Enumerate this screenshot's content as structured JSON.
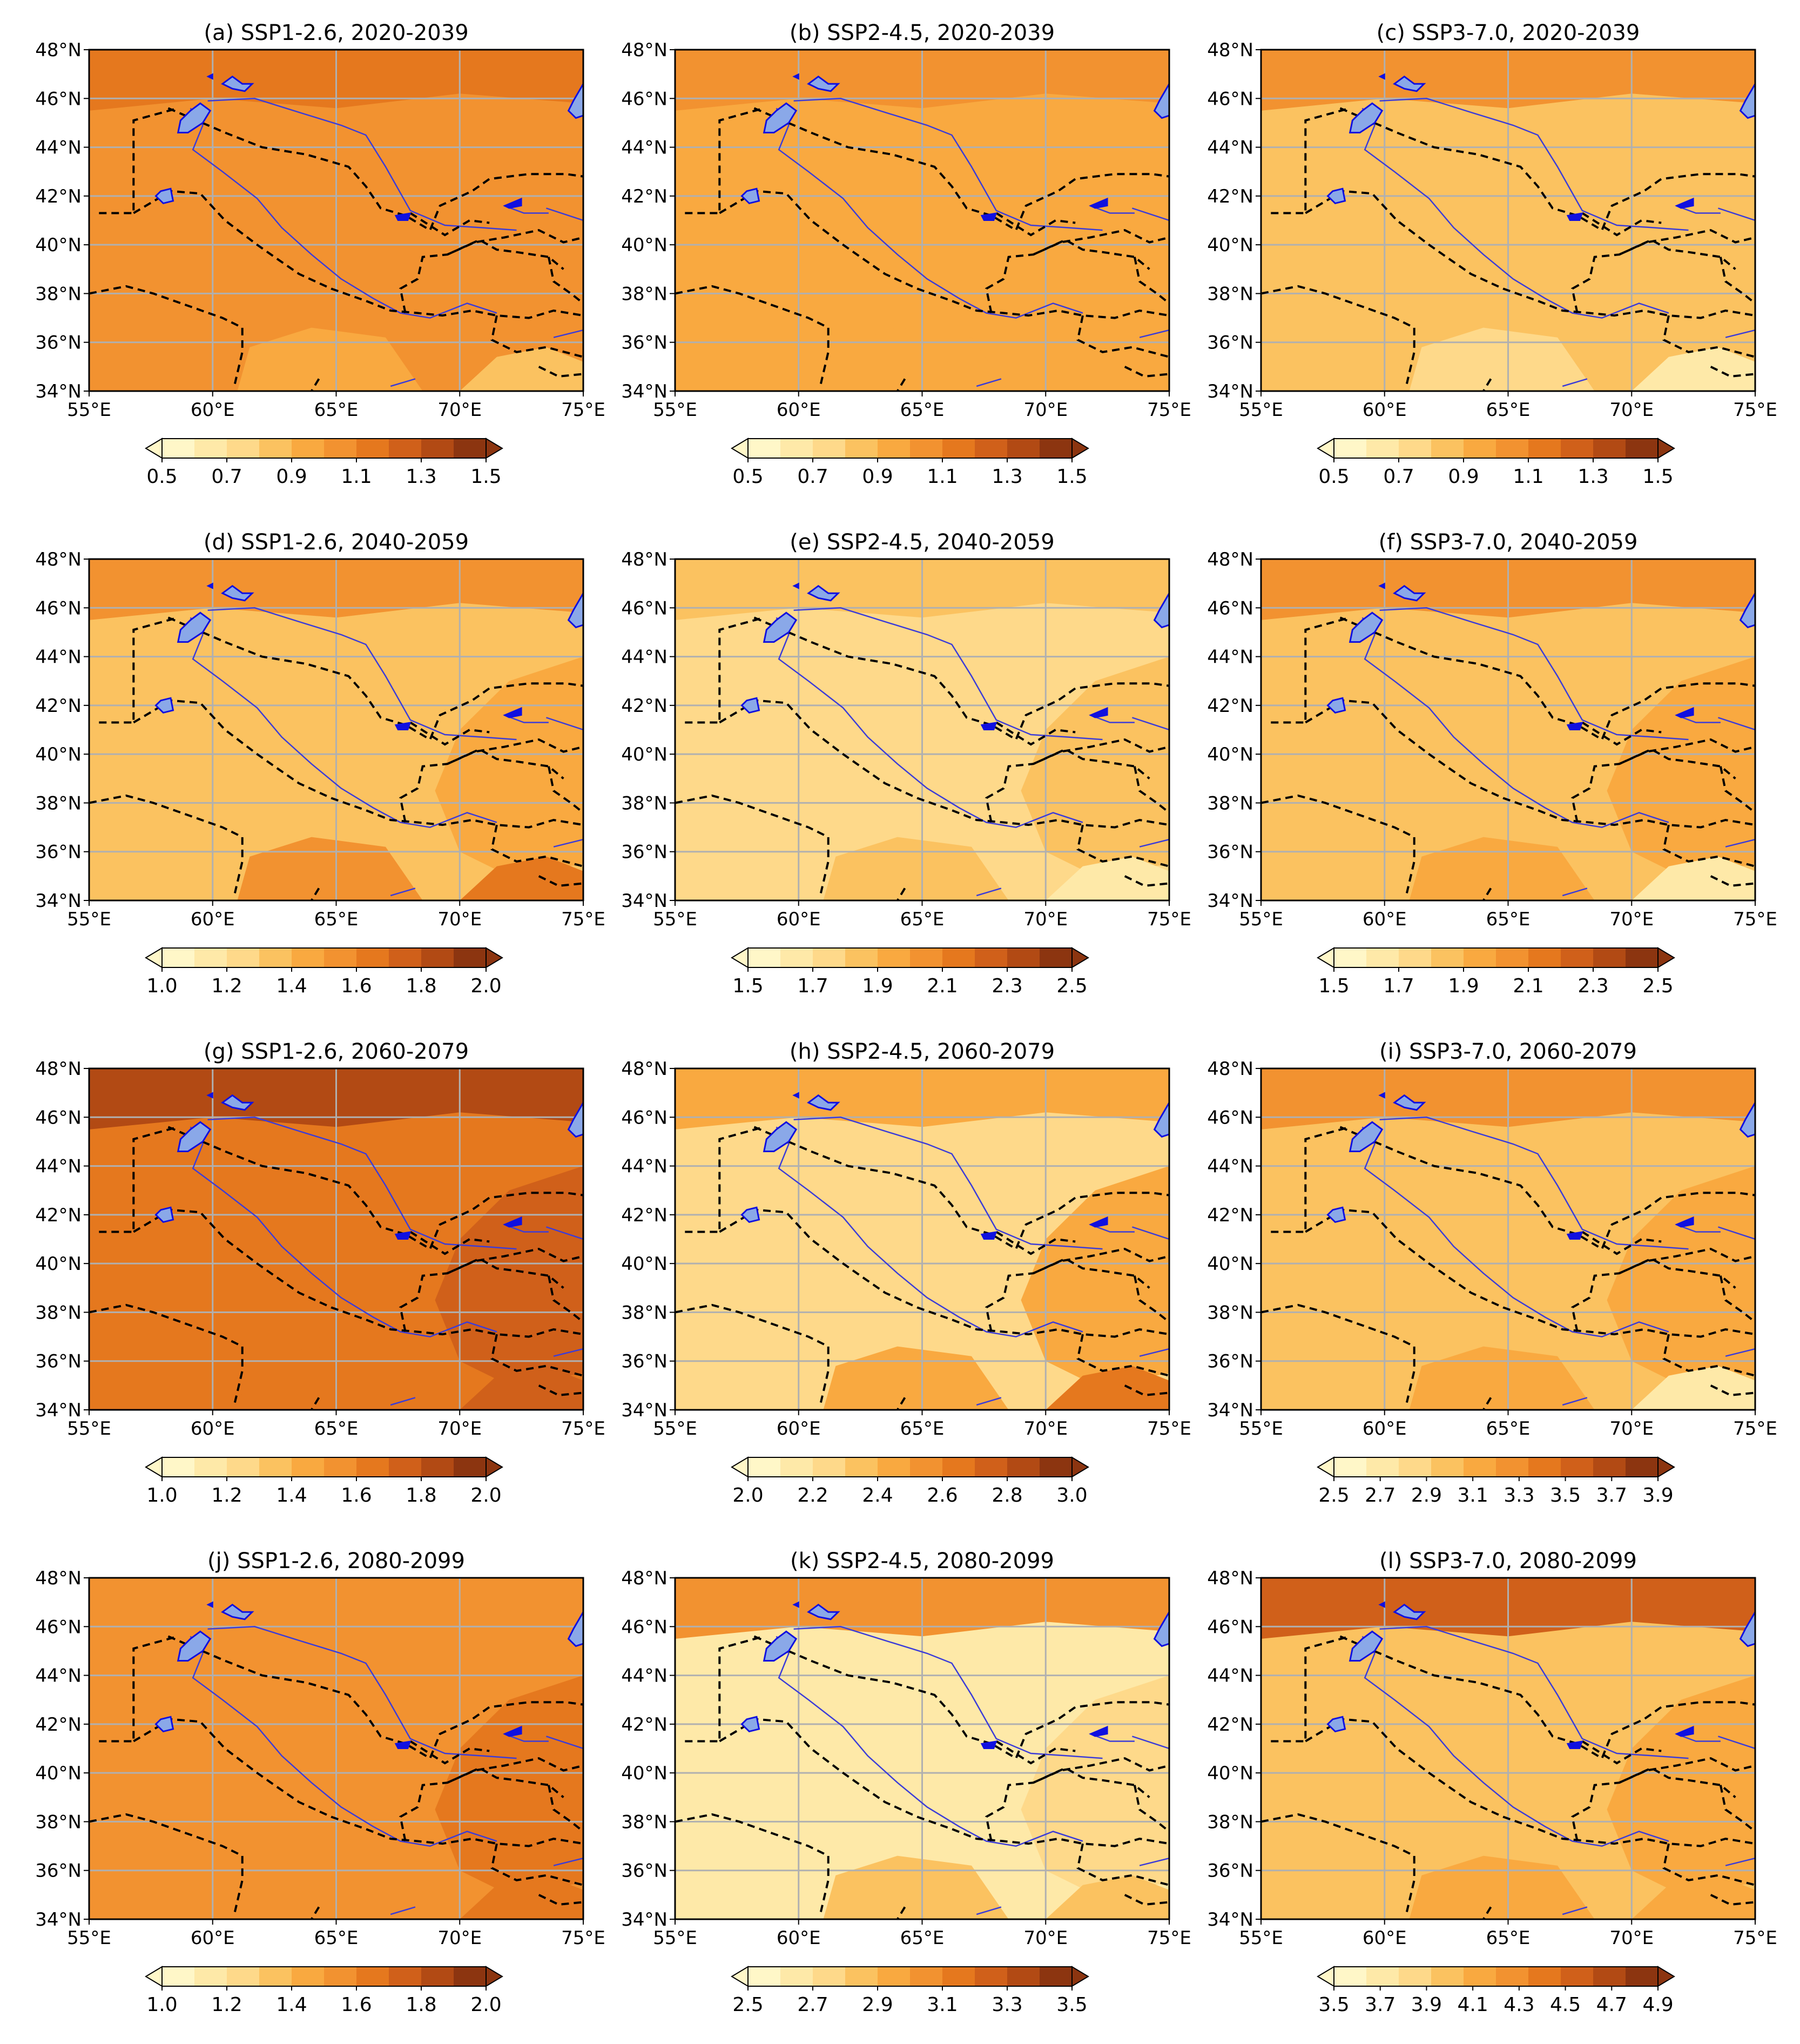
{
  "figure": {
    "colors": [
      "#fff7c8",
      "#fee9a8",
      "#fed98a",
      "#fbc260",
      "#f9a940",
      "#f29230",
      "#e5781e",
      "#d0601a",
      "#b24a14",
      "#8c3510"
    ],
    "lon_ticks": [
      "55°E",
      "60°E",
      "65°E",
      "70°E",
      "75°E"
    ],
    "lat_ticks": [
      "48°N",
      "46°N",
      "44°N",
      "42°N",
      "40°N",
      "38°N",
      "36°N",
      "34°N"
    ],
    "map_extent": {
      "lon": [
        55,
        75
      ],
      "lat": [
        34,
        48
      ]
    },
    "panels": [
      {
        "title": "(a) SSP1-2.6, 2020-2039",
        "cb_ticks": [
          "0.5",
          "0.7",
          "0.9",
          "1.1",
          "1.3",
          "1.5"
        ],
        "base": 5,
        "south": 4,
        "north": 6,
        "se": 3,
        "east": 5
      },
      {
        "title": "(b) SSP2-4.5, 2020-2039",
        "cb_ticks": [
          "0.5",
          "0.7",
          "0.9",
          "1.1",
          "1.3",
          "1.5"
        ],
        "base": 4,
        "south": 4,
        "north": 5,
        "se": 4,
        "east": 4
      },
      {
        "title": "(c) SSP3-7.0, 2020-2039",
        "cb_ticks": [
          "0.5",
          "0.7",
          "0.9",
          "1.1",
          "1.3",
          "1.5"
        ],
        "base": 3,
        "south": 2,
        "north": 5,
        "se": 1,
        "east": 3
      },
      {
        "title": "(d) SSP1-2.6, 2040-2059",
        "cb_ticks": [
          "1.0",
          "1.2",
          "1.4",
          "1.6",
          "1.8",
          "2.0"
        ],
        "base": 3,
        "south": 5,
        "north": 5,
        "se": 6,
        "east": 4
      },
      {
        "title": "(e) SSP2-4.5, 2040-2059",
        "cb_ticks": [
          "1.5",
          "1.7",
          "1.9",
          "2.1",
          "2.3",
          "2.5"
        ],
        "base": 2,
        "south": 3,
        "north": 3,
        "se": 1,
        "east": 3
      },
      {
        "title": "(f) SSP3-7.0, 2040-2059",
        "cb_ticks": [
          "1.5",
          "1.7",
          "1.9",
          "2.1",
          "2.3",
          "2.5"
        ],
        "base": 3,
        "south": 4,
        "north": 5,
        "se": 1,
        "east": 4
      },
      {
        "title": "(g) SSP1-2.6, 2060-2079",
        "cb_ticks": [
          "1.0",
          "1.2",
          "1.4",
          "1.6",
          "1.8",
          "2.0"
        ],
        "base": 6,
        "south": 6,
        "north": 8,
        "se": 7,
        "east": 7
      },
      {
        "title": "(h) SSP2-4.5, 2060-2079",
        "cb_ticks": [
          "2.0",
          "2.2",
          "2.4",
          "2.6",
          "2.8",
          "3.0"
        ],
        "base": 2,
        "south": 4,
        "north": 4,
        "se": 6,
        "east": 4
      },
      {
        "title": "(i) SSP3-7.0, 2060-2079",
        "cb_ticks": [
          "2.5",
          "2.7",
          "2.9",
          "3.1",
          "3.3",
          "3.5",
          "3.7",
          "3.9"
        ],
        "base": 3,
        "south": 4,
        "north": 5,
        "se": 1,
        "east": 4
      },
      {
        "title": "(j) SSP1-2.6, 2080-2099",
        "cb_ticks": [
          "1.0",
          "1.2",
          "1.4",
          "1.6",
          "1.8",
          "2.0"
        ],
        "base": 5,
        "south": 5,
        "north": 5,
        "se": 6,
        "east": 6
      },
      {
        "title": "(k) SSP2-4.5, 2080-2099",
        "cb_ticks": [
          "2.5",
          "2.7",
          "2.9",
          "3.1",
          "3.3",
          "3.5"
        ],
        "base": 1,
        "south": 3,
        "north": 5,
        "se": 3,
        "east": 2
      },
      {
        "title": "(l) SSP3-7.0, 2080-2099",
        "cb_ticks": [
          "3.5",
          "3.7",
          "3.9",
          "4.1",
          "4.3",
          "4.5",
          "4.7",
          "4.9"
        ],
        "base": 3,
        "south": 4,
        "north": 7,
        "se": 4,
        "east": 4
      }
    ]
  }
}
